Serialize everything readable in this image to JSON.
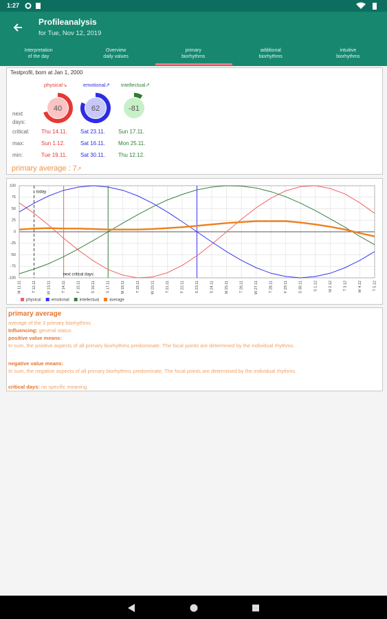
{
  "status_bar": {
    "time": "1:27"
  },
  "app_bar": {
    "title": "Profileanalysis",
    "subtitle": "for Tue, Nov 12, 2019"
  },
  "tabs": [
    [
      "Interpretation",
      "of the day"
    ],
    [
      "Overview",
      "daily values"
    ],
    [
      "primary",
      "biorhythms"
    ],
    [
      "additional",
      "biorhythms"
    ],
    [
      "intuitive",
      "biorhythms"
    ]
  ],
  "profile": {
    "header": "Testprofil, born at Jan 1, 2000",
    "row_labels": [
      "next days:",
      "critical:",
      "max:",
      "min:"
    ],
    "rhythms": [
      {
        "name": "physical",
        "trend": "↘",
        "value": 40,
        "color": "#e53935",
        "fill": "#fbc4c4",
        "critical": "Thu 14.11.",
        "max": "Sun 1.12.",
        "min": "Tue 19.11."
      },
      {
        "name": "emotional",
        "trend": "↗",
        "value": 62,
        "color": "#2d2de0",
        "fill": "#c8c8f8",
        "critical": "Sat 23.11.",
        "max": "Sat 16.11.",
        "min": "Sat 30.11."
      },
      {
        "name": "intellectual",
        "trend": "↗",
        "value": -81,
        "color": "#2e7d32",
        "fill": "#c8f0c8",
        "critical": "Sun 17.11.",
        "max": "Mon 25.11.",
        "min": "Thu 12.12."
      }
    ],
    "average": {
      "label": "primary average :",
      "value": 7,
      "trend": "↗"
    }
  },
  "chart_data": {
    "type": "line",
    "categories": [
      "M 11.11",
      "T 12.11",
      "W 13.11",
      "T 14.11",
      "F 15.11",
      "S 16.11",
      "S 17.11",
      "M 18.11",
      "T 19.11",
      "W 20.11",
      "T 21.11",
      "F 22.11",
      "S 23.11",
      "S 24.11",
      "M 25.11",
      "T 26.11",
      "W 27.11",
      "T 28.11",
      "F 29.11",
      "S 30.11",
      "S 1.12",
      "M 2.12",
      "T 3.12",
      "W 4.12",
      "T 5.12"
    ],
    "series": [
      {
        "name": "physical",
        "color": "#f06262",
        "values": [
          63,
          40,
          14,
          -14,
          -40,
          -63,
          -82,
          -94,
          -100,
          -98,
          -89,
          -73,
          -52,
          -27,
          0,
          27,
          52,
          73,
          89,
          98,
          100,
          94,
          82,
          63,
          40
        ]
      },
      {
        "name": "emotional",
        "color": "#3434f0",
        "values": [
          43,
          62,
          78,
          90,
          97,
          100,
          97,
          90,
          78,
          62,
          43,
          22,
          0,
          -22,
          -43,
          -62,
          -78,
          -90,
          -97,
          -100,
          -97,
          -90,
          -78,
          -62,
          -43
        ]
      },
      {
        "name": "intellectual",
        "color": "#3c7d3c",
        "values": [
          -91,
          -81,
          -69,
          -54,
          -37,
          -19,
          0,
          19,
          37,
          54,
          69,
          81,
          91,
          97,
          100,
          99,
          95,
          87,
          76,
          62,
          46,
          28,
          10,
          -10,
          -28
        ]
      },
      {
        "name": "average",
        "color": "#ee7f1a",
        "values": [
          5,
          7,
          8,
          7,
          7,
          6,
          5,
          5,
          5,
          6,
          8,
          10,
          13,
          16,
          19,
          21,
          23,
          23,
          23,
          20,
          16,
          11,
          5,
          -3,
          -10
        ]
      }
    ],
    "ylim": [
      -100,
      100
    ],
    "yticks": [
      100,
      75,
      50,
      25,
      0,
      -25,
      -50,
      -75,
      -100
    ],
    "grid": true,
    "vlines": [
      {
        "at": "T 12.11",
        "color": "#444",
        "dashed": true
      },
      {
        "at": "T 14.11",
        "color": "#f06262",
        "dashed": false
      },
      {
        "at": "S 17.11",
        "color": "#3c7d3c",
        "dashed": false
      },
      {
        "at": "S 23.11",
        "color": "#3434f0",
        "dashed": false
      }
    ],
    "annotations": [
      {
        "text": "today",
        "at": "T 12.11",
        "pos": "top"
      },
      {
        "text": "next critical days",
        "at": "T 14.11",
        "pos": "bottom"
      }
    ]
  },
  "description": {
    "title": "primary average",
    "subtitle": "average of the 3 primary biorhythms",
    "influencing_label": "Influencing:",
    "influencing": "general status",
    "positive_label": "positive value means:",
    "positive": "In sum, the positive aspects of all primary biorhythms predominate. The focal points are determined by the individual rhythms.",
    "negative_label": "negative value means:",
    "negative": "In sum, the negative aspects of all primary biorhythms predominate. The focal points are determined by the individual rhythms.",
    "critical_label": "critical days:",
    "critical": "no specific meaning."
  }
}
